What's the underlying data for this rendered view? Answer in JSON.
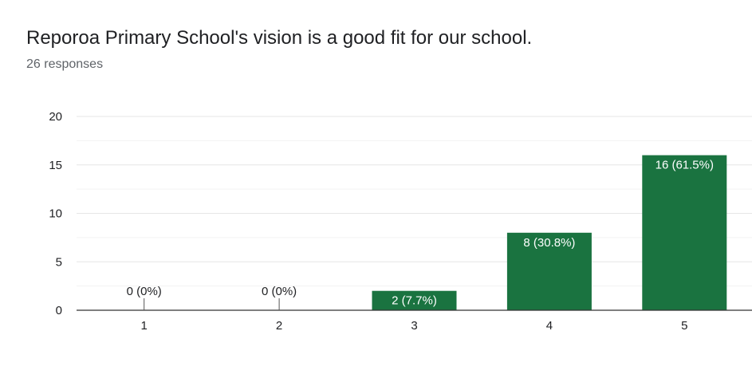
{
  "chart_data": {
    "type": "bar",
    "title": "Reporoa Primary School's vision is a good fit for our school.",
    "subtitle": "26 responses",
    "categories": [
      "1",
      "2",
      "3",
      "4",
      "5"
    ],
    "values": [
      0,
      0,
      2,
      8,
      16
    ],
    "data_labels": [
      "0 (0%)",
      "0 (0%)",
      "2 (7.7%)",
      "8 (30.8%)",
      "16 (61.5%)"
    ],
    "ylim": [
      0,
      20
    ],
    "yticks": [
      "0",
      "5",
      "10",
      "15",
      "20"
    ],
    "ytick_values": [
      0,
      5,
      10,
      15,
      20
    ],
    "xlabel": "",
    "ylabel": "",
    "grid": true,
    "bar_color": "#1a7340",
    "grid_color": "#e6e6e6",
    "axis_color": "#333333"
  }
}
